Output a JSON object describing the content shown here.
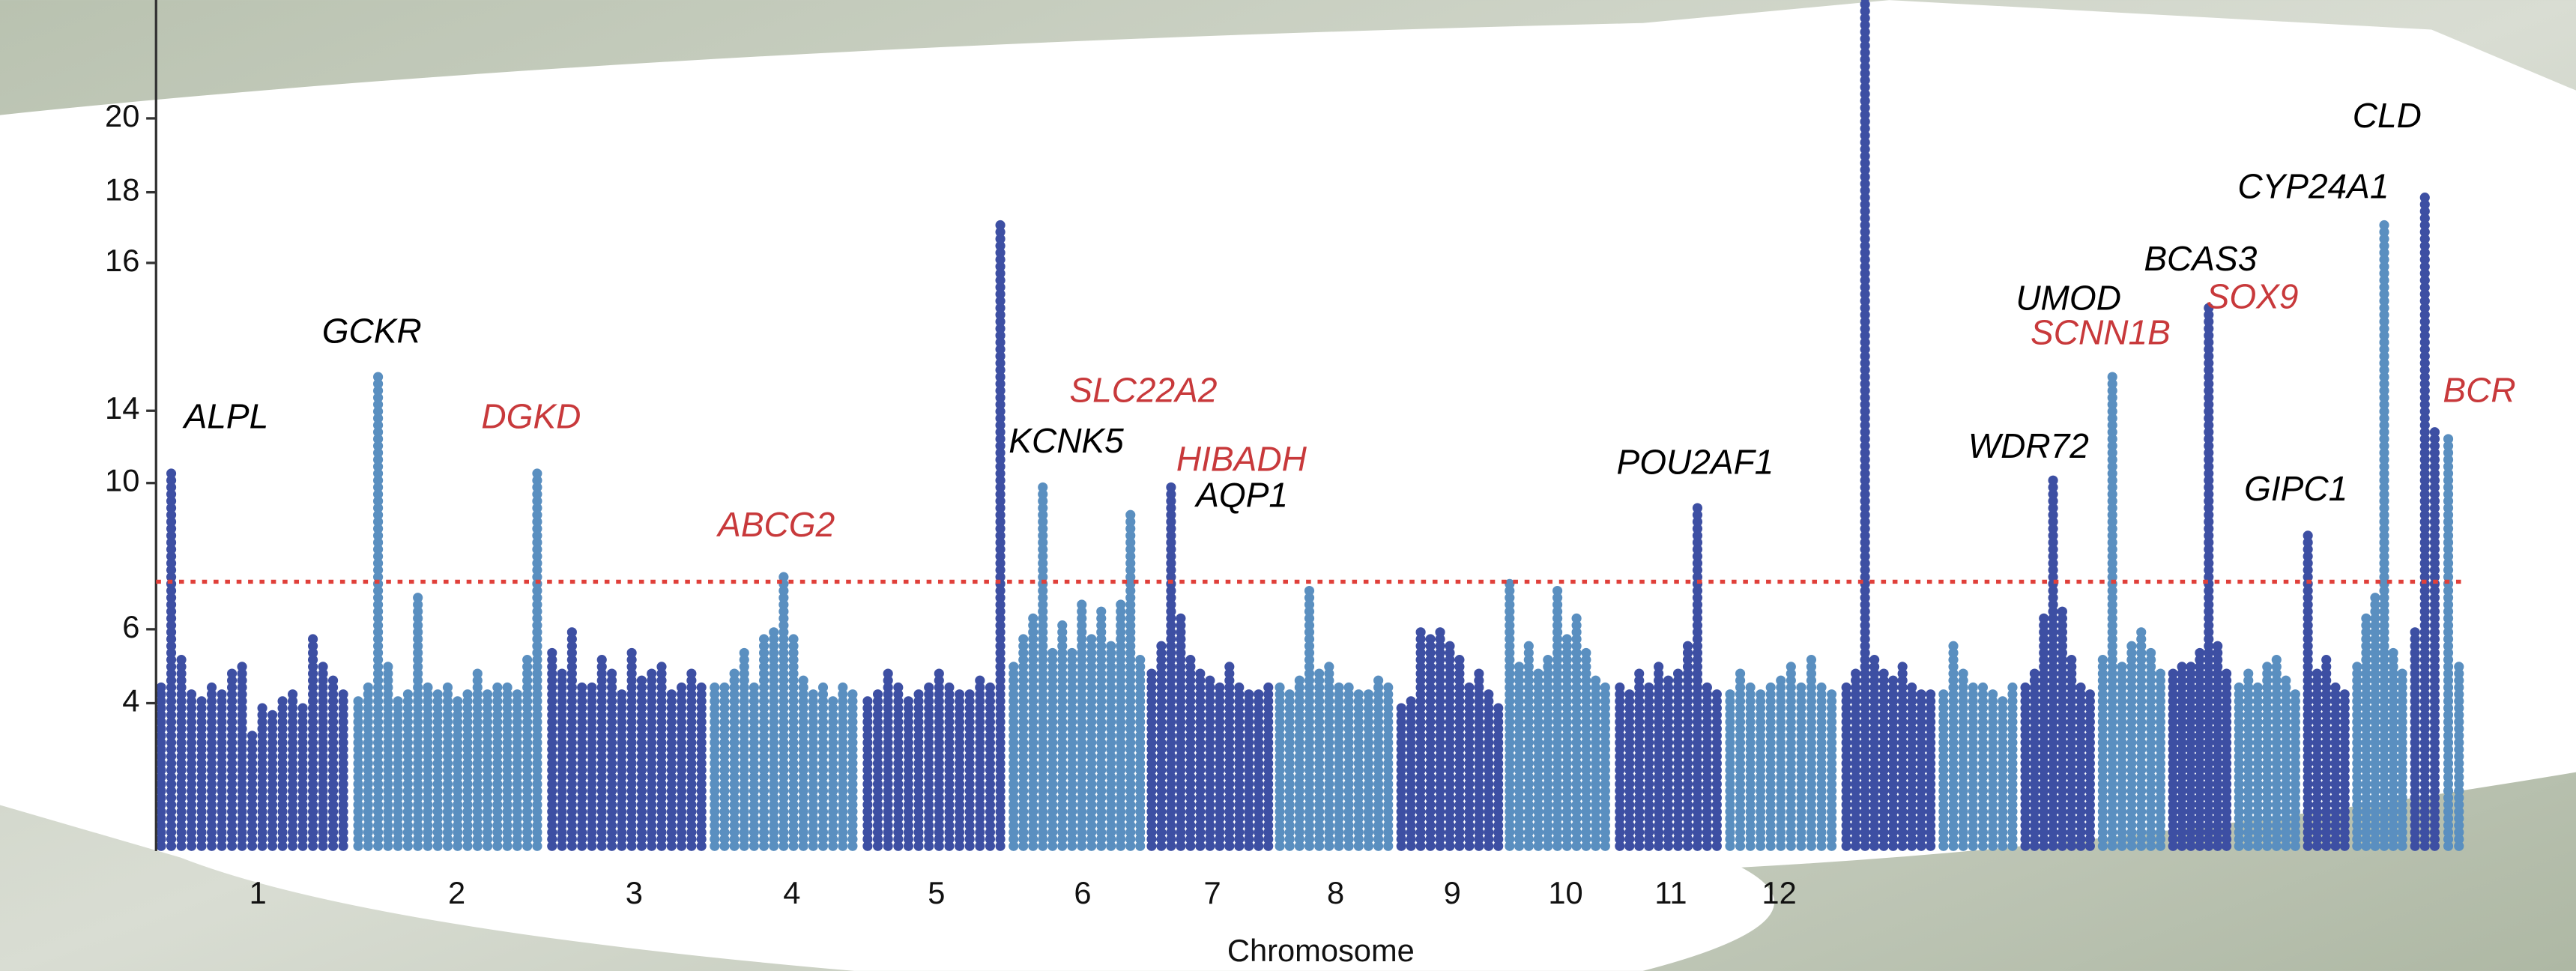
{
  "chart_data": {
    "type": "manhattan",
    "xlabel": "Chromosome",
    "categories": [
      "1",
      "2",
      "3",
      "4",
      "5",
      "6",
      "7",
      "8",
      "9",
      "10",
      "11",
      "12",
      null,
      null,
      null,
      null,
      null,
      null,
      null,
      null,
      null,
      null
    ],
    "colors": [
      "#3d4fa3",
      "#5a8fc0"
    ],
    "values": [
      [
        4.6,
        10.6,
        5.2,
        4.3,
        4.1,
        4.6,
        4.4,
        4.8,
        5.1,
        3.2,
        3.9,
        3.8,
        4.1,
        4.4,
        4.0,
        5.8,
        5.1,
        4.7,
        4.3
      ],
      [
        4.2,
        4.5,
        14.5,
        5.0,
        4.2,
        4.4,
        7.0,
        4.5,
        4.3,
        4.6,
        4.2,
        4.4,
        4.8,
        4.3,
        4.5,
        4.6,
        4.4,
        5.3,
        10.9
      ],
      [
        5.4,
        4.8,
        6.0,
        4.6,
        4.5,
        5.2,
        4.8,
        4.3,
        5.5,
        4.7,
        4.9,
        5.1,
        4.4,
        4.6,
        4.8,
        4.5
      ],
      [
        4.5,
        4.6,
        4.9,
        5.4,
        4.6,
        5.8,
        6.1,
        7.6,
        5.9,
        4.7,
        4.3,
        4.6,
        4.2,
        4.5,
        4.4
      ],
      [
        4.2,
        4.4,
        4.8,
        4.6,
        4.2,
        4.4,
        4.5,
        4.8,
        4.6,
        4.3,
        4.4,
        4.7,
        4.5,
        17.1
      ],
      [
        5.0,
        5.8,
        6.3,
        10.1,
        5.5,
        6.2,
        5.4,
        6.8,
        5.9,
        6.5,
        5.7,
        6.7,
        9.3,
        5.2
      ],
      [
        4.8,
        5.6,
        10.1,
        6.4,
        5.2,
        4.9,
        4.7,
        4.5,
        5.0,
        4.6,
        4.4,
        4.3,
        4.5
      ],
      [
        4.6,
        4.4,
        4.7,
        7.1,
        4.8,
        5.0,
        4.5,
        4.6,
        4.4,
        4.3,
        4.7,
        4.6
      ],
      [
        4.0,
        4.2,
        6.1,
        5.8,
        6.0,
        5.6,
        5.2,
        4.6,
        4.8,
        4.3,
        4.0
      ],
      [
        7.3,
        5.1,
        5.6,
        4.9,
        5.3,
        7.1,
        5.8,
        6.3,
        5.5,
        4.7,
        4.5
      ],
      [
        4.6,
        4.4,
        4.9,
        4.5,
        5.0,
        4.7,
        4.8,
        5.6,
        9.5,
        4.6,
        4.4
      ],
      [
        4.4,
        4.8,
        4.6,
        4.3,
        4.5,
        4.7,
        5.0,
        4.6,
        5.3,
        4.5,
        4.4
      ],
      [
        4.6,
        4.8,
        23.3,
        5.2,
        4.9,
        4.7,
        5.1,
        4.6,
        4.4,
        4.3
      ],
      [
        4.3,
        5.6,
        4.8,
        4.5,
        4.6,
        4.4,
        4.2,
        4.5
      ],
      [
        4.5,
        4.8,
        6.4,
        10.4,
        6.6,
        5.2,
        4.6,
        4.4
      ],
      [
        5.2,
        14.5,
        5.1,
        5.6,
        6.0,
        5.5,
        4.8
      ],
      [
        4.8,
        5.1,
        5.0,
        5.4,
        15.4,
        5.7,
        4.9
      ],
      [
        4.5,
        4.8,
        4.6,
        5.0,
        5.3,
        4.7,
        4.4
      ],
      [
        8.7,
        4.9,
        5.2,
        4.6,
        4.4
      ],
      [
        5.0,
        6.3,
        7.0,
        17.1,
        5.4,
        4.8
      ],
      [
        6.0,
        18.0,
        13.0
      ],
      [
        12.5,
        5.0
      ]
    ],
    "ylim": [
      0,
      23.5
    ],
    "yticks": [
      4,
      6,
      10,
      14,
      16,
      18,
      20
    ],
    "threshold": 7.3,
    "threshold_color": "#e0403a",
    "annotations": [
      {
        "text": "ALPL",
        "color": "#000000"
      },
      {
        "text": "GCKR",
        "color": "#000000"
      },
      {
        "text": "DGKD",
        "color": "#c8393b"
      },
      {
        "text": "ABCG2",
        "color": "#c8393b"
      },
      {
        "text": "SLC22A2",
        "color": "#c8393b"
      },
      {
        "text": "KCNK5",
        "color": "#000000"
      },
      {
        "text": "HIBADH",
        "color": "#c8393b"
      },
      {
        "text": "AQP1",
        "color": "#000000"
      },
      {
        "text": "POU2AF1",
        "color": "#000000"
      },
      {
        "text": "WDR72",
        "color": "#000000"
      },
      {
        "text": "UMOD",
        "color": "#000000"
      },
      {
        "text": "SCNN1B",
        "color": "#c8393b"
      },
      {
        "text": "BCAS3",
        "color": "#000000"
      },
      {
        "text": "SOX9",
        "color": "#c8393b"
      },
      {
        "text": "GIPC1",
        "color": "#000000"
      },
      {
        "text": "CYP24A1",
        "color": "#000000"
      },
      {
        "text": "CLD",
        "color": "#000000"
      },
      {
        "text": "BCR",
        "color": "#c8393b"
      }
    ]
  }
}
